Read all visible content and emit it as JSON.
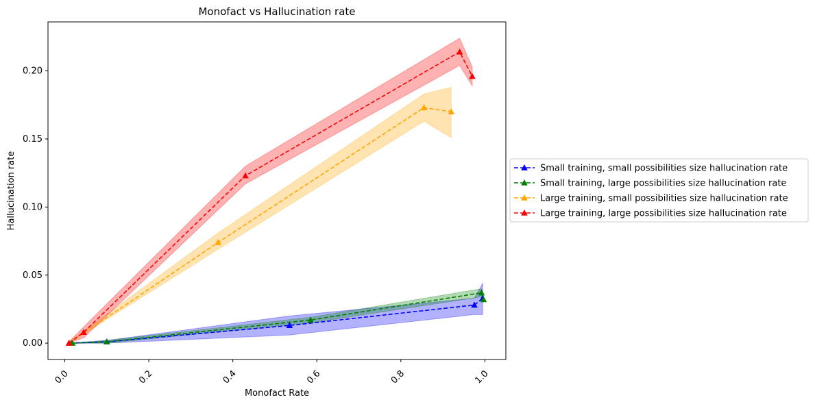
{
  "chart_data": {
    "type": "line",
    "title": "Monofact vs Hallucination rate",
    "xlabel": "Monofact Rate",
    "ylabel": "Hallucination rate",
    "xlim": [
      -0.04,
      1.05
    ],
    "ylim": [
      -0.012,
      0.236
    ],
    "xticks": [
      "0.0",
      "0.2",
      "0.4",
      "0.6",
      "0.8",
      "1.0"
    ],
    "yticks": [
      "0.00",
      "0.05",
      "0.10",
      "0.15",
      "0.20"
    ],
    "legend_position": "center-right outside",
    "grid": false,
    "series": [
      {
        "name": "Small training, small possibilities size hallucination rate",
        "color": "#0000ff",
        "band_color": "#0000ff",
        "x": [
          0.01,
          0.1,
          0.535,
          0.975,
          0.995
        ],
        "y": [
          0.0,
          0.001,
          0.013,
          0.028,
          0.033
        ],
        "lower": [
          0.0,
          0.0,
          0.006,
          0.021,
          0.021
        ],
        "upper": [
          0.0,
          0.002,
          0.02,
          0.033,
          0.044
        ]
      },
      {
        "name": "Small training, large possibilities size hallucination rate",
        "color": "#008000",
        "band_color": "#008000",
        "x": [
          0.018,
          0.1,
          0.585,
          0.992,
          0.997
        ],
        "y": [
          0.0,
          0.001,
          0.017,
          0.037,
          0.032
        ],
        "lower": [
          0.0,
          0.0,
          0.015,
          0.034,
          0.03
        ],
        "upper": [
          0.0,
          0.002,
          0.019,
          0.04,
          0.035
        ]
      },
      {
        "name": "Large training, small possibilities size hallucination rate",
        "color": "#ffa500",
        "band_color": "#ffa500",
        "x": [
          0.01,
          0.365,
          0.855,
          0.92
        ],
        "y": [
          0.0,
          0.074,
          0.173,
          0.17
        ],
        "lower": [
          0.0,
          0.069,
          0.163,
          0.151
        ],
        "upper": [
          0.001,
          0.081,
          0.183,
          0.188
        ]
      },
      {
        "name": "Large training, large possibilities size hallucination rate",
        "color": "#ff0000",
        "band_color": "#ff0000",
        "x": [
          0.01,
          0.045,
          0.43,
          0.94,
          0.97
        ],
        "y": [
          0.0,
          0.008,
          0.123,
          0.214,
          0.196
        ],
        "lower": [
          0.0,
          0.004,
          0.117,
          0.204,
          0.189
        ],
        "upper": [
          0.001,
          0.012,
          0.13,
          0.224,
          0.203
        ]
      }
    ]
  }
}
